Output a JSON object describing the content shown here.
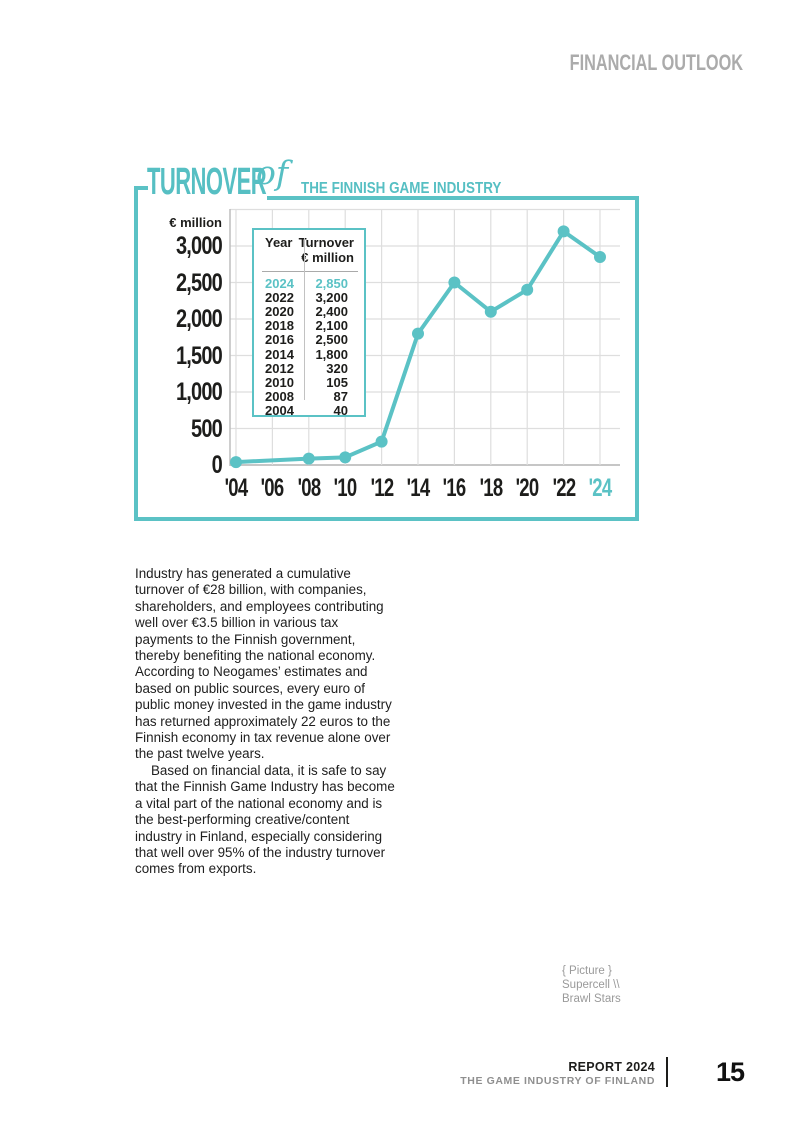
{
  "page": {
    "header": "FINANCIAL OUTLOOK",
    "footer": {
      "report": "REPORT 2024",
      "org": "THE GAME INDUSTRY OF FINLAND",
      "page_number": "15"
    }
  },
  "title": {
    "main": "TURNOVER",
    "script": "of",
    "sub": "THE FINNISH GAME INDUSTRY"
  },
  "chart_data": {
    "type": "line",
    "title": "Turnover of the Finnish game industry",
    "ylabel": "€ million",
    "xlabel": "",
    "x_ticks": [
      "'04",
      "'06",
      "'08",
      "'10",
      "'12",
      "'14",
      "'16",
      "'18",
      "'20",
      "'22",
      "'24"
    ],
    "y_ticks": [
      "0",
      "500",
      "1,000",
      "1,500",
      "2,000",
      "2,500",
      "3,000"
    ],
    "ylim": [
      0,
      3500
    ],
    "grid": true,
    "legend": "none",
    "highlight_last_x_tick": true,
    "series": [
      {
        "name": "Turnover € million",
        "x": [
          2004,
          2008,
          2010,
          2012,
          2014,
          2016,
          2018,
          2020,
          2022,
          2024
        ],
        "values": [
          40,
          87,
          105,
          320,
          1800,
          2500,
          2100,
          2400,
          3200,
          2850
        ]
      }
    ]
  },
  "table": {
    "col1_header": "Year",
    "col2_header_line1": "Turnover",
    "col2_header_line2": "€ million",
    "rows": [
      {
        "year": "2024",
        "value": "2,850",
        "highlight": true
      },
      {
        "year": "2022",
        "value": "3,200",
        "highlight": false
      },
      {
        "year": "2020",
        "value": "2,400",
        "highlight": false
      },
      {
        "year": "2018",
        "value": "2,100",
        "highlight": false
      },
      {
        "year": "2016",
        "value": "2,500",
        "highlight": false
      },
      {
        "year": "2014",
        "value": "1,800",
        "highlight": false
      },
      {
        "year": "2012",
        "value": "320",
        "highlight": false
      },
      {
        "year": "2010",
        "value": "105",
        "highlight": false
      },
      {
        "year": "2008",
        "value": "87",
        "highlight": false
      },
      {
        "year": "2004",
        "value": "40",
        "highlight": false
      }
    ]
  },
  "body": {
    "paragraph1": "Industry has generated a cumulative turnover of €28 billion, with companies, shareholders, and employees contributing well over €3.5 billion in various tax payments to the Finnish government, thereby benefiting the national economy. According to Neogames’ estimates and based on public sources, every euro of public money invested in the game industry has returned approximately 22 euros to the Finnish economy in tax revenue alone over the past twelve years.",
    "paragraph2": "Based on financial data, it is safe to say that the Finnish Game Industry has become a vital part of the national economy and is the best-performing creative/content industry in Finland, especially considering that well over 95% of the industry turnover comes from exports."
  },
  "caption": {
    "line1": "{ Picture }",
    "line2": "Supercell \\\\",
    "line3": "Brawl Stars"
  },
  "colors": {
    "teal": "#5bc2c5",
    "grid": "#dedede",
    "baseline": "#c6c6c6",
    "axis": "#bdbdbd",
    "text": "#1d1d1b",
    "muted": "#9a9a9a"
  }
}
